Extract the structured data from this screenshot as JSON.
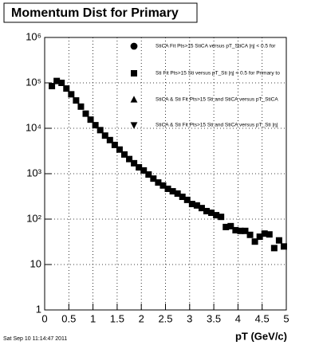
{
  "chart_data": {
    "type": "scatter",
    "title": "Momentum Dist for Primary",
    "x_label": "pT (GeV/c)",
    "timestamp": "Sat Sep 10 11:14:47 2011",
    "xlim": [
      0,
      5
    ],
    "xticks": [
      0,
      0.5,
      1,
      1.5,
      2,
      2.5,
      3,
      3.5,
      4,
      4.5,
      5
    ],
    "ylim": [
      1,
      1000000
    ],
    "log_y": true,
    "yticks": [
      1,
      10,
      {
        "value": 100,
        "label": "10²"
      },
      {
        "value": 1000,
        "label": "10³"
      },
      {
        "value": 10000,
        "label": "10⁴"
      },
      {
        "value": 100000,
        "label": "10⁵"
      },
      {
        "value": 1000000,
        "label": "10⁶"
      }
    ],
    "grid": true,
    "series": [
      {
        "name": "StiCA Fit Pts>15 StiCA versus pT_StiCA |η| < 0.5 for",
        "marker": "circle",
        "color": "#000000",
        "x": [],
        "values": []
      },
      {
        "name": "Sti Fit Pts>15 Sti versus pT_Sti |η| < 0.5 for Primary to",
        "marker": "square",
        "color": "#000000",
        "x": [
          0.15,
          0.25,
          0.35,
          0.45,
          0.55,
          0.65,
          0.75,
          0.85,
          0.95,
          1.05,
          1.15,
          1.25,
          1.35,
          1.45,
          1.55,
          1.65,
          1.75,
          1.85,
          1.95,
          2.05,
          2.15,
          2.25,
          2.35,
          2.45,
          2.55,
          2.65,
          2.75,
          2.85,
          2.95,
          3.05,
          3.15,
          3.25,
          3.35,
          3.45,
          3.55,
          3.65,
          3.75,
          3.85,
          3.95,
          4.05,
          4.15,
          4.25,
          4.35,
          4.45,
          4.55,
          4.65,
          4.75,
          4.85,
          4.95
        ],
        "values": [
          85000,
          110000,
          100000,
          75000,
          56000,
          41000,
          30000,
          21000,
          15500,
          11700,
          9100,
          6900,
          5500,
          4300,
          3400,
          2650,
          2100,
          1700,
          1380,
          1180,
          960,
          780,
          640,
          550,
          465,
          410,
          365,
          310,
          265,
          215,
          200,
          175,
          150,
          138,
          122,
          112,
          67,
          70,
          57,
          55,
          55,
          45,
          32,
          41,
          48,
          46,
          23,
          34,
          25
        ]
      },
      {
        "name": "StiCA & Sti Fit Pts>15 Sti and StiCA versus pT_StiCA",
        "marker": "triangle",
        "color": "#000000",
        "x": [],
        "values": []
      },
      {
        "name": "StiCA & Sti Fit Pts>15 Sti and StiCA versus pT_Sti |η|",
        "marker": "triangle-down",
        "color": "#000000",
        "x": [],
        "values": []
      }
    ]
  }
}
